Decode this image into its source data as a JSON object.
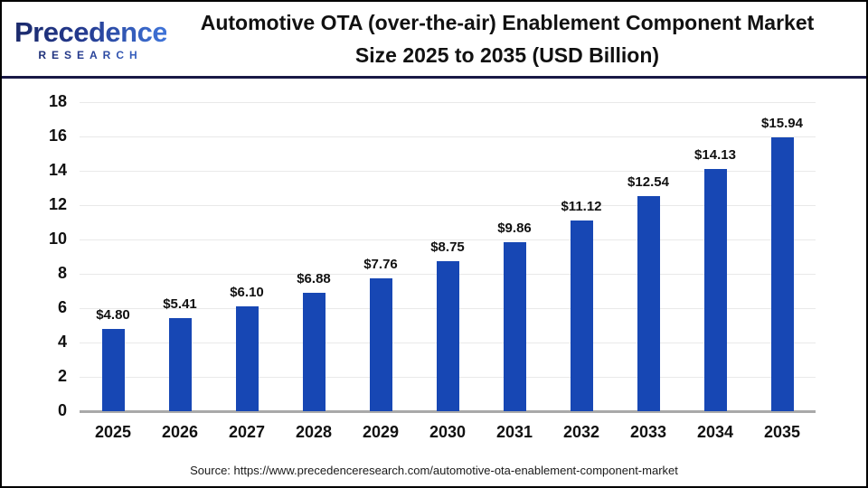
{
  "header": {
    "logo_line1": "Precedence",
    "logo_line2": "RESEARCH",
    "title_line1": "Automotive OTA (over-the-air) Enablement Component Market",
    "title_line2": "Size 2025 to 2035 (USD Billion)"
  },
  "chart_data": {
    "type": "bar",
    "title": "Automotive OTA (over-the-air) Enablement Component Market Size 2025 to 2035 (USD Billion)",
    "categories": [
      "2025",
      "2026",
      "2027",
      "2028",
      "2029",
      "2030",
      "2031",
      "2032",
      "2033",
      "2034",
      "2035"
    ],
    "values": [
      4.8,
      5.41,
      6.1,
      6.88,
      7.76,
      8.75,
      9.86,
      11.12,
      12.54,
      14.13,
      15.94
    ],
    "value_labels": [
      "$4.80",
      "$5.41",
      "$6.10",
      "$6.88",
      "$7.76",
      "$8.75",
      "$9.86",
      "$11.12",
      "$12.54",
      "$14.13",
      "$15.94"
    ],
    "xlabel": "",
    "ylabel": "",
    "ylim": [
      0,
      18
    ],
    "yticks": [
      0,
      2,
      4,
      6,
      8,
      10,
      12,
      14,
      16,
      18
    ],
    "grid": true,
    "legend": false,
    "bar_color": "#1747b4"
  },
  "footer": {
    "source": "Source: https://www.precedenceresearch.com/automotive-ota-enablement-component-market"
  },
  "colors": {
    "bar": "#1747b4",
    "header_rule": "#191946",
    "gridline": "#e9e9e9",
    "baseline": "#a9a9a9",
    "logo_dark": "#1b2a6b",
    "logo_light": "#3f74d9"
  }
}
